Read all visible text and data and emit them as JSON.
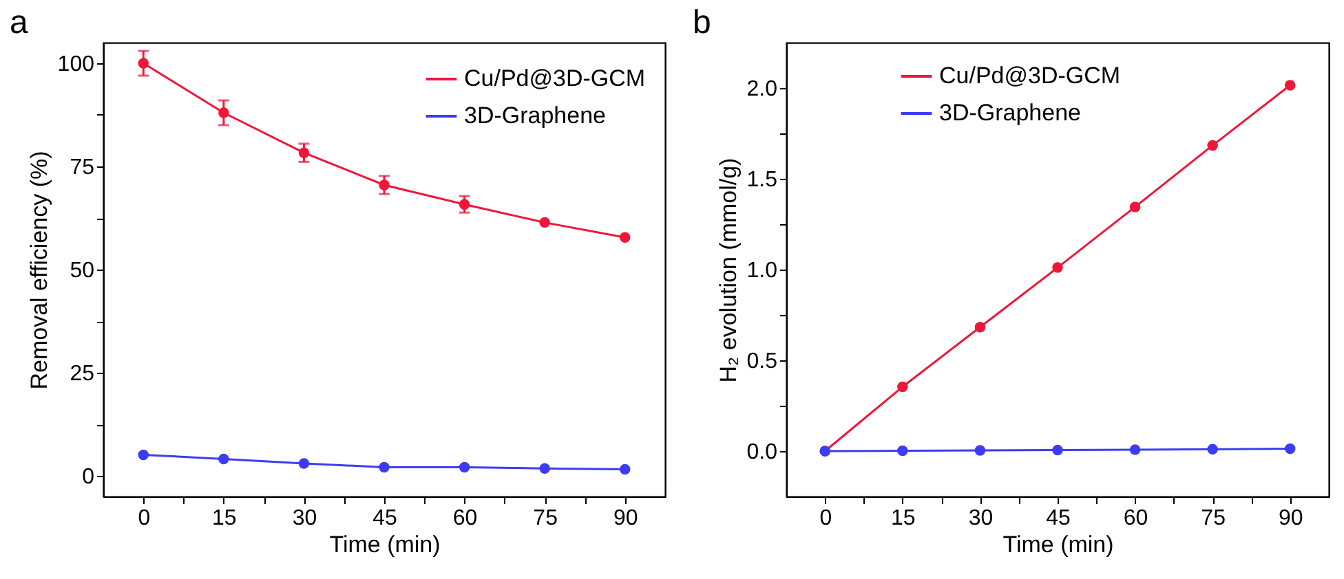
{
  "chart_data": [
    {
      "type": "line",
      "title": "a",
      "xlabel": "Time (min)",
      "ylabel": "Removal efficiency (%)",
      "x": [
        0,
        15,
        30,
        45,
        60,
        75,
        90
      ],
      "series": [
        {
          "name": "Cu/Pd@3D-GCM",
          "color": "#f0163a",
          "values": [
            100,
            88,
            78.3,
            70.5,
            65.8,
            61.4,
            57.8
          ],
          "errors": [
            3,
            3,
            2.2,
            2.2,
            2,
            null,
            null
          ]
        },
        {
          "name": "3D-Graphene",
          "color": "#3c3cf5",
          "values": [
            5.1,
            4.1,
            3,
            2.1,
            2.1,
            1.8,
            1.6
          ]
        }
      ],
      "xlim": [
        -7.5,
        97.5
      ],
      "xticks": [
        0,
        {
          "value": 7.5,
          "label": null
        },
        15,
        {
          "value": 22.5,
          "label": null
        },
        30,
        {
          "value": 37.5,
          "label": null
        },
        45,
        {
          "value": 52.5,
          "label": null
        },
        60,
        {
          "value": 67.5,
          "label": null
        },
        75,
        {
          "value": 82.5,
          "label": null
        },
        90
      ],
      "ylim": [
        -5,
        105
      ],
      "yticks": [
        0,
        {
          "value": 12.5,
          "label": null
        },
        25,
        {
          "value": 37.5,
          "label": null
        },
        50,
        {
          "value": 62.5,
          "label": null
        },
        75,
        {
          "value": 87.5,
          "label": null
        },
        100
      ],
      "legend": "top right",
      "marker": "circle",
      "line_style": "solid",
      "grid": false
    },
    {
      "type": "line",
      "title": "b",
      "xlabel": "Time (min)",
      "ylabel": "H₂ evolution (mmol/g)",
      "x": [
        0,
        15,
        30,
        45,
        60,
        75,
        90
      ],
      "series": [
        {
          "name": "Cu/Pd@3D-GCM",
          "color": "#f0163a",
          "values": [
            0,
            0.354,
            0.683,
            1.011,
            1.345,
            1.684,
            2.015
          ]
        },
        {
          "name": "3D-Graphene",
          "color": "#3c3cf5",
          "values": [
            0,
            0.002,
            0.004,
            0.006,
            0.008,
            0.01,
            0.013
          ]
        }
      ],
      "xlim": [
        -7.5,
        97.5
      ],
      "xticks": [
        0,
        {
          "value": 7.5,
          "label": null
        },
        15,
        {
          "value": 22.5,
          "label": null
        },
        30,
        {
          "value": 37.5,
          "label": null
        },
        45,
        {
          "value": 52.5,
          "label": null
        },
        60,
        {
          "value": 67.5,
          "label": null
        },
        75,
        {
          "value": 82.5,
          "label": null
        },
        90
      ],
      "ylim": [
        -0.25,
        2.25
      ],
      "yticks": [
        {
          "value": 0,
          "label": "0.0"
        },
        {
          "value": 0.25,
          "label": null
        },
        {
          "value": 0.5,
          "label": "0.5"
        },
        {
          "value": 0.75,
          "label": null
        },
        {
          "value": 1,
          "label": "1.0"
        },
        {
          "value": 1.25,
          "label": null
        },
        {
          "value": 1.5,
          "label": "1.5"
        },
        {
          "value": 1.75,
          "label": null
        },
        {
          "value": 2,
          "label": "2.0"
        }
      ],
      "legend": "top",
      "marker": "circle",
      "line_style": "solid",
      "grid": false
    }
  ]
}
